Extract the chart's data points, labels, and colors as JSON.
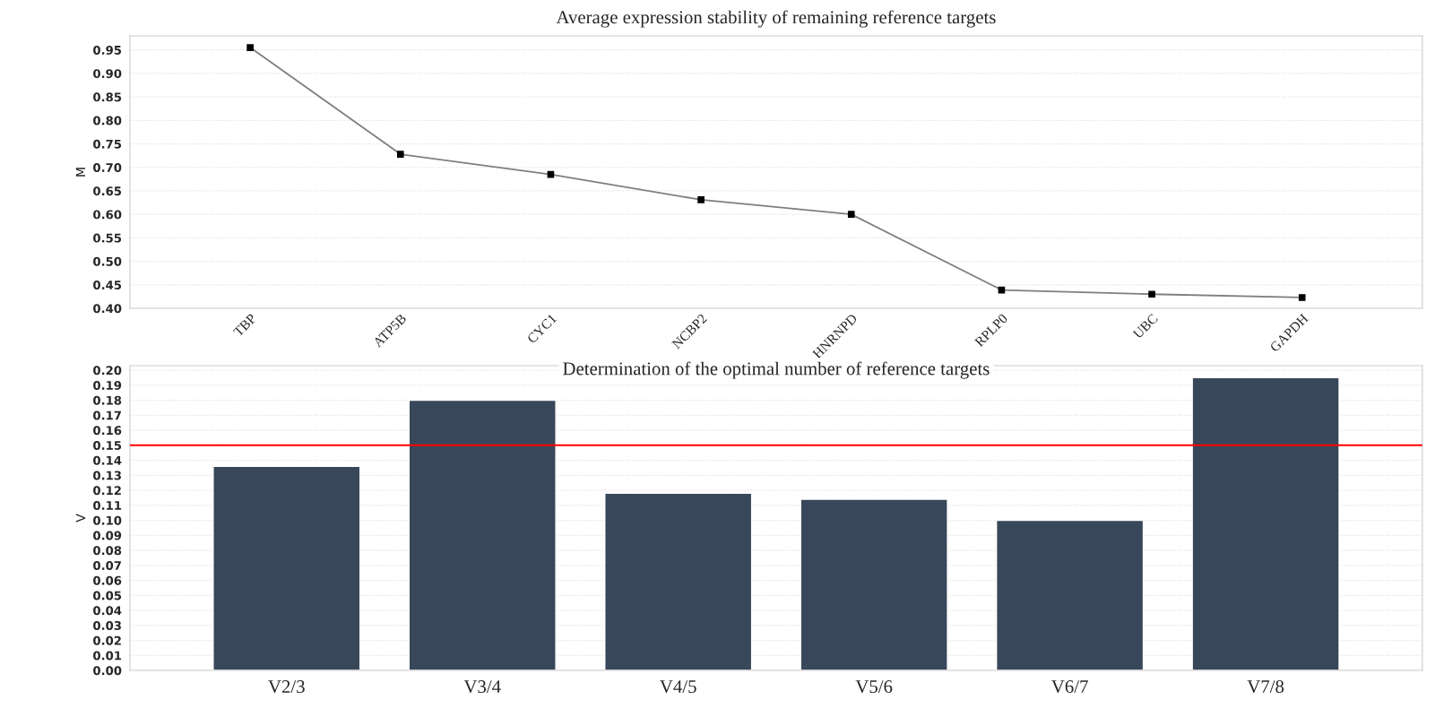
{
  "chart_data": [
    {
      "type": "line",
      "title": "Average expression stability of remaining reference targets",
      "ylabel": "M",
      "categories": [
        "TBP",
        "ATP5B",
        "CYC1",
        "NCBP2",
        "HNRNPD",
        "RPLP0",
        "UBC",
        "GAPDH"
      ],
      "series": [
        {
          "color": "#7f7f7f",
          "values": [
            0.955,
            0.728,
            0.685,
            0.631,
            0.6,
            0.439,
            0.43,
            0.423
          ]
        }
      ],
      "marker": "square",
      "ylim": [
        0.4,
        0.98
      ],
      "yticks": [
        {
          "value": 0.4,
          "label": "0.40"
        },
        {
          "value": 0.45,
          "label": "0.45"
        },
        {
          "value": 0.5,
          "label": "0.50"
        },
        {
          "value": 0.55,
          "label": "0.55"
        },
        {
          "value": 0.6,
          "label": "0.60"
        },
        {
          "value": 0.65,
          "label": "0.65"
        },
        {
          "value": 0.7,
          "label": "0.70"
        },
        {
          "value": 0.75,
          "label": "0.75"
        },
        {
          "value": 0.8,
          "label": "0.80"
        },
        {
          "value": 0.85,
          "label": "0.85"
        },
        {
          "value": 0.9,
          "label": "0.90"
        },
        {
          "value": 0.95,
          "label": "0.95"
        }
      ],
      "grid": "y"
    },
    {
      "type": "bar",
      "title": "Determination of the optimal number of reference targets",
      "ylabel": "V",
      "categories": [
        "V2/3",
        "V3/4",
        "V4/5",
        "V5/6",
        "V6/7",
        "V7/8"
      ],
      "series": [
        {
          "color": "#384759",
          "values": [
            0.136,
            0.18,
            0.118,
            0.114,
            0.1,
            0.195
          ]
        }
      ],
      "ylim": [
        0,
        0.203
      ],
      "yticks": [
        {
          "value": 0,
          "label": "0.00"
        },
        {
          "value": 0.01,
          "label": "0.01"
        },
        {
          "value": 0.02,
          "label": "0.02"
        },
        {
          "value": 0.03,
          "label": "0.03"
        },
        {
          "value": 0.04,
          "label": "0.04"
        },
        {
          "value": 0.05,
          "label": "0.05"
        },
        {
          "value": 0.06,
          "label": "0.06"
        },
        {
          "value": 0.07,
          "label": "0.07"
        },
        {
          "value": 0.08,
          "label": "0.08"
        },
        {
          "value": 0.09,
          "label": "0.09"
        },
        {
          "value": 0.1,
          "label": "0.10"
        },
        {
          "value": 0.11,
          "label": "0.11"
        },
        {
          "value": 0.12,
          "label": "0.12"
        },
        {
          "value": 0.13,
          "label": "0.13"
        },
        {
          "value": 0.14,
          "label": "0.14"
        },
        {
          "value": 0.15,
          "label": "0.15"
        },
        {
          "value": 0.16,
          "label": "0.16"
        },
        {
          "value": 0.17,
          "label": "0.17"
        },
        {
          "value": 0.18,
          "label": "0.18"
        },
        {
          "value": 0.19,
          "label": "0.19"
        },
        {
          "value": 0.2,
          "label": "0.20"
        }
      ],
      "ref_lines": [
        {
          "axis": "y",
          "value": 0.15,
          "color": "#ff0000"
        }
      ],
      "grid": "y"
    }
  ]
}
